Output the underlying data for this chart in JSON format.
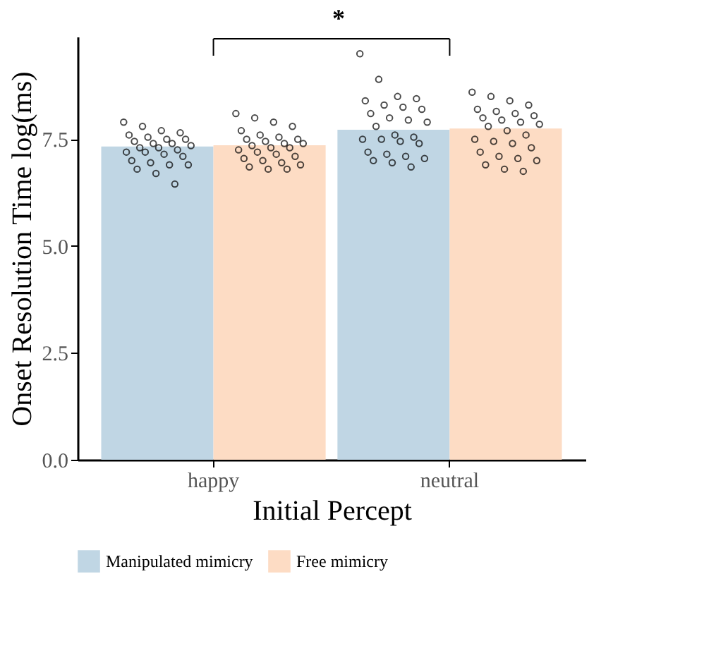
{
  "chart_data": {
    "type": "bar",
    "xlabel": "Initial Percept",
    "ylabel": "Onset Resolution Time log(ms)",
    "categories": [
      "happy",
      "neutral"
    ],
    "series": [
      {
        "name": "Manipulated mimicry",
        "color": "#c0d6e4",
        "values": [
          7.33,
          7.72
        ]
      },
      {
        "name": "Free mimicry",
        "color": "#fddcc4",
        "values": [
          7.36,
          7.75
        ]
      },
      {
        "type": "scatter",
        "color": "#000000",
        "x": [
          "happy",
          "happy",
          "happy",
          "happy",
          "happy",
          "happy",
          "happy",
          "happy",
          "happy",
          "happy",
          "happy",
          "happy",
          "happy",
          "happy",
          "happy",
          "happy",
          "happy",
          "happy",
          "happy",
          "happy",
          "happy",
          "happy",
          "happy",
          "happy",
          "happy",
          "happy"
        ],
        "values": [
          7.9,
          7.8,
          7.7,
          7.65,
          7.6,
          7.55,
          7.5,
          7.5,
          7.45,
          7.4,
          7.4,
          7.35,
          7.3,
          7.3,
          7.25,
          7.2,
          7.2,
          7.15,
          7.1,
          7.0,
          6.95,
          6.9,
          6.9,
          6.8,
          6.7,
          6.45
        ]
      },
      {
        "type": "scatter",
        "color": "#000000",
        "x": [
          "happy",
          "happy",
          "happy",
          "happy",
          "happy",
          "happy",
          "happy",
          "happy",
          "happy",
          "happy",
          "happy",
          "happy",
          "happy",
          "happy",
          "happy",
          "happy",
          "happy",
          "happy",
          "happy",
          "happy",
          "happy",
          "happy",
          "happy",
          "happy",
          "happy",
          "happy"
        ],
        "values": [
          8.1,
          8.0,
          7.9,
          7.8,
          7.7,
          7.6,
          7.55,
          7.5,
          7.5,
          7.45,
          7.4,
          7.4,
          7.35,
          7.3,
          7.3,
          7.25,
          7.2,
          7.15,
          7.1,
          7.05,
          7.0,
          6.95,
          6.9,
          6.85,
          6.8,
          6.8
        ]
      },
      {
        "type": "scatter",
        "color": "#000000",
        "x": [
          "neutral",
          "neutral",
          "neutral",
          "neutral",
          "neutral",
          "neutral",
          "neutral",
          "neutral",
          "neutral",
          "neutral",
          "neutral",
          "neutral",
          "neutral",
          "neutral",
          "neutral",
          "neutral",
          "neutral",
          "neutral",
          "neutral",
          "neutral",
          "neutral",
          "neutral",
          "neutral",
          "neutral",
          "neutral",
          "neutral"
        ],
        "values": [
          9.5,
          8.9,
          8.5,
          8.45,
          8.4,
          8.3,
          8.25,
          8.2,
          8.1,
          8.0,
          7.95,
          7.9,
          7.8,
          7.6,
          7.55,
          7.5,
          7.5,
          7.45,
          7.4,
          7.2,
          7.15,
          7.1,
          7.05,
          7.0,
          6.95,
          6.85
        ]
      },
      {
        "type": "scatter",
        "color": "#000000",
        "x": [
          "neutral",
          "neutral",
          "neutral",
          "neutral",
          "neutral",
          "neutral",
          "neutral",
          "neutral",
          "neutral",
          "neutral",
          "neutral",
          "neutral",
          "neutral",
          "neutral",
          "neutral",
          "neutral",
          "neutral",
          "neutral",
          "neutral",
          "neutral",
          "neutral",
          "neutral",
          "neutral",
          "neutral",
          "neutral",
          "neutral"
        ],
        "values": [
          8.6,
          8.5,
          8.4,
          8.3,
          8.2,
          8.15,
          8.1,
          8.05,
          8.0,
          7.95,
          7.9,
          7.85,
          7.8,
          7.7,
          7.6,
          7.5,
          7.45,
          7.4,
          7.3,
          7.2,
          7.1,
          7.05,
          7.0,
          6.9,
          6.8,
          6.75
        ]
      }
    ],
    "ylim": [
      0,
      9.9
    ],
    "yticks": [
      {
        "value": 0,
        "label": "0.0"
      },
      {
        "value": 2.5,
        "label": "2.5"
      },
      {
        "value": 5,
        "label": "5.0"
      },
      {
        "value": 7.5,
        "label": "7.5"
      }
    ],
    "annotations": [
      "*"
    ],
    "legend": "bottom",
    "grid": false,
    "marker": "circle"
  }
}
